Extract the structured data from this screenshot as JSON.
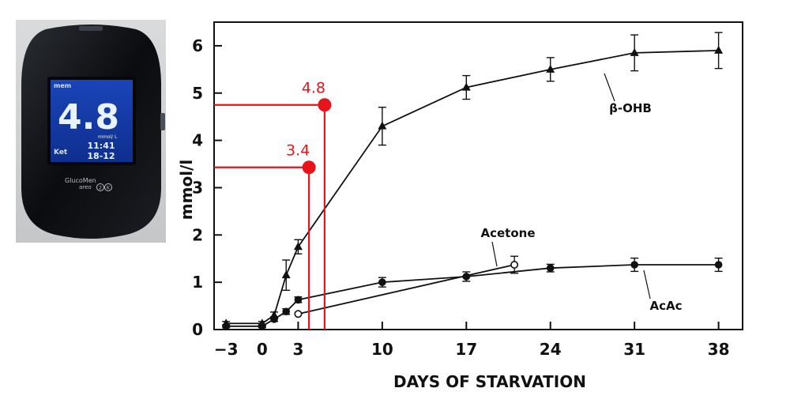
{
  "meter": {
    "reading": "4.8",
    "unit": "mmol/ L",
    "time": "11:41",
    "date": "18-12",
    "mem_label": "mem",
    "mode_label": "Ket",
    "brand": "GlucoMen",
    "model": "areo",
    "model_badge": "2K"
  },
  "chart_data": {
    "type": "line",
    "title": "",
    "xlabel": "DAYS OF STARVATION",
    "ylabel": "mmol/l",
    "xlim": [
      -4,
      40
    ],
    "ylim": [
      0,
      6.5
    ],
    "xticks": [
      -3,
      0,
      3,
      10,
      17,
      24,
      31,
      38
    ],
    "xtick_labels": [
      "−3",
      "0",
      "3",
      "10",
      "17",
      "24",
      "31",
      "38"
    ],
    "yticks": [
      0,
      1,
      2,
      3,
      4,
      5,
      6
    ],
    "series": [
      {
        "name": "β-OHB",
        "marker": "triangle",
        "x": [
          -3,
          0,
          1,
          2,
          3,
          10,
          17,
          24,
          31,
          38
        ],
        "y": [
          0.13,
          0.13,
          0.3,
          1.15,
          1.75,
          4.3,
          5.12,
          5.5,
          5.85,
          5.9
        ],
        "err": [
          0.04,
          0.04,
          0.07,
          0.32,
          0.15,
          0.4,
          0.25,
          0.25,
          0.38,
          0.38
        ]
      },
      {
        "name": "AcAc",
        "marker": "filled-circle",
        "x": [
          -3,
          0,
          1,
          2,
          3,
          10,
          17,
          24,
          31,
          38
        ],
        "y": [
          0.07,
          0.07,
          0.22,
          0.38,
          0.63,
          1.0,
          1.12,
          1.3,
          1.37,
          1.37
        ],
        "err": [
          0.03,
          0.03,
          0.05,
          0.06,
          0.06,
          0.1,
          0.1,
          0.08,
          0.14,
          0.14
        ]
      },
      {
        "name": "Acetone",
        "marker": "open-circle",
        "x": [
          3,
          21
        ],
        "y": [
          0.33,
          1.37
        ],
        "err": [
          0.0,
          0.18
        ]
      }
    ],
    "annotations": [
      {
        "text": "4.8",
        "x": 5.2,
        "y": 4.75,
        "color": "#e8131b"
      },
      {
        "text": "3.4",
        "x": 3.9,
        "y": 3.43,
        "color": "#e8131b"
      }
    ],
    "grid": false,
    "legend": "inline labels"
  }
}
